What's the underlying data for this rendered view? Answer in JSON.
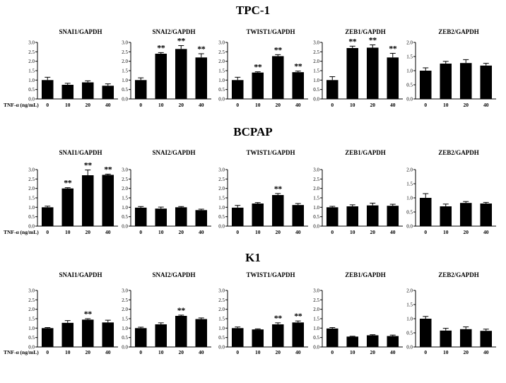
{
  "figure": {
    "xlabel": "TNF-α (ng/mL)",
    "categories": [
      "0",
      "10",
      "20",
      "40"
    ]
  },
  "chart_data": [
    {
      "row": "TPC-1",
      "panels": [
        {
          "type": "bar",
          "title": "SNAI1/GAPDH",
          "categories": [
            "0",
            "10",
            "20",
            "40"
          ],
          "values": [
            1.0,
            0.75,
            0.88,
            0.7
          ],
          "errors": [
            0.15,
            0.08,
            0.08,
            0.1
          ],
          "significance": [
            "",
            "",
            "",
            ""
          ],
          "ylim": [
            0,
            3.0
          ],
          "yticks": [
            "0.0",
            "0.5",
            "1.0",
            "1.5",
            "2.0",
            "2.5",
            "3.0"
          ]
        },
        {
          "type": "bar",
          "title": "SNAI2/GAPDH",
          "categories": [
            "0",
            "10",
            "20",
            "40"
          ],
          "values": [
            1.0,
            2.4,
            2.65,
            2.2
          ],
          "errors": [
            0.12,
            0.06,
            0.18,
            0.2
          ],
          "significance": [
            "",
            "**",
            "**",
            "**"
          ],
          "ylim": [
            0,
            3.0
          ],
          "yticks": [
            "0.0",
            "0.5",
            "1.0",
            "1.5",
            "2.0",
            "2.5",
            "3.0"
          ]
        },
        {
          "type": "bar",
          "title": "TWIST1/GAPDH",
          "categories": [
            "0",
            "10",
            "20",
            "40"
          ],
          "values": [
            1.0,
            1.4,
            2.27,
            1.42
          ],
          "errors": [
            0.15,
            0.04,
            0.08,
            0.06
          ],
          "significance": [
            "",
            "**",
            "**",
            "**"
          ],
          "ylim": [
            0,
            3.0
          ],
          "yticks": [
            "0.0",
            "0.5",
            "1.0",
            "1.5",
            "2.0",
            "2.5",
            "3.0"
          ]
        },
        {
          "type": "bar",
          "title": "ZEB1/GAPDH",
          "categories": [
            "0",
            "10",
            "20",
            "40"
          ],
          "values": [
            1.0,
            2.7,
            2.72,
            2.2
          ],
          "errors": [
            0.18,
            0.1,
            0.15,
            0.22
          ],
          "significance": [
            "",
            "**",
            "**",
            "**"
          ],
          "ylim": [
            0,
            3.0
          ],
          "yticks": [
            "0.0",
            "0.5",
            "1.0",
            "1.5",
            "2.0",
            "2.5",
            "3.0"
          ]
        },
        {
          "type": "bar",
          "title": "ZEB2/GAPDH",
          "categories": [
            "0",
            "10",
            "20",
            "40"
          ],
          "values": [
            1.0,
            1.25,
            1.27,
            1.18
          ],
          "errors": [
            0.1,
            0.08,
            0.12,
            0.08
          ],
          "significance": [
            "",
            "",
            "",
            ""
          ],
          "ylim": [
            0,
            2.0
          ],
          "yticks": [
            "0.0",
            "0.5",
            "1.0",
            "1.5",
            "2.0"
          ]
        }
      ]
    },
    {
      "row": "BCPAP",
      "panels": [
        {
          "type": "bar",
          "title": "SNAI1/GAPDH",
          "categories": [
            "0",
            "10",
            "20",
            "40"
          ],
          "values": [
            1.0,
            2.0,
            2.7,
            2.72
          ],
          "errors": [
            0.06,
            0.04,
            0.28,
            0.04
          ],
          "significance": [
            "",
            "**",
            "**",
            "**"
          ],
          "ylim": [
            0,
            3.0
          ],
          "yticks": [
            "0.0",
            "0.5",
            "1.0",
            "1.5",
            "2.0",
            "2.5",
            "3.0"
          ]
        },
        {
          "type": "bar",
          "title": "SNAI2/GAPDH",
          "categories": [
            "0",
            "10",
            "20",
            "40"
          ],
          "values": [
            0.98,
            0.93,
            1.0,
            0.85
          ],
          "errors": [
            0.06,
            0.08,
            0.04,
            0.05
          ],
          "significance": [
            "",
            "",
            "",
            ""
          ],
          "ylim": [
            0,
            3.0
          ],
          "yticks": [
            "0.0",
            "0.5",
            "1.0",
            "1.5",
            "2.0",
            "2.5",
            "3.0"
          ]
        },
        {
          "type": "bar",
          "title": "TWIST1/GAPDH",
          "categories": [
            "0",
            "10",
            "20",
            "40"
          ],
          "values": [
            0.98,
            1.2,
            1.65,
            1.12
          ],
          "errors": [
            0.12,
            0.05,
            0.08,
            0.08
          ],
          "significance": [
            "",
            "",
            "**",
            ""
          ],
          "ylim": [
            0,
            3.0
          ],
          "yticks": [
            "0.0",
            "0.5",
            "1.0",
            "1.5",
            "2.0",
            "2.5",
            "3.0"
          ]
        },
        {
          "type": "bar",
          "title": "ZEB1/GAPDH",
          "categories": [
            "0",
            "10",
            "20",
            "40"
          ],
          "values": [
            1.0,
            1.05,
            1.1,
            1.08
          ],
          "errors": [
            0.05,
            0.08,
            0.12,
            0.08
          ],
          "significance": [
            "",
            "",
            "",
            ""
          ],
          "ylim": [
            0,
            3.0
          ],
          "yticks": [
            "0.0",
            "0.5",
            "1.0",
            "1.5",
            "2.0",
            "2.5",
            "3.0"
          ]
        },
        {
          "type": "bar",
          "title": "ZEB2/GAPDH",
          "categories": [
            "0",
            "10",
            "20",
            "40"
          ],
          "values": [
            1.0,
            0.7,
            0.82,
            0.8
          ],
          "errors": [
            0.15,
            0.08,
            0.05,
            0.04
          ],
          "significance": [
            "",
            "",
            "",
            ""
          ],
          "ylim": [
            0,
            2.0
          ],
          "yticks": [
            "0.0",
            "0.5",
            "1.0",
            "1.5",
            "2.0"
          ]
        }
      ]
    },
    {
      "row": "K1",
      "panels": [
        {
          "type": "bar",
          "title": "SNAI1/GAPDH",
          "categories": [
            "0",
            "10",
            "20",
            "40"
          ],
          "values": [
            1.0,
            1.28,
            1.45,
            1.3
          ],
          "errors": [
            0.03,
            0.12,
            0.05,
            0.12
          ],
          "significance": [
            "",
            "",
            "**",
            ""
          ],
          "ylim": [
            0,
            3.0
          ],
          "yticks": [
            "0.0",
            "0.5",
            "1.0",
            "1.5",
            "2.0",
            "2.5",
            "3.0"
          ]
        },
        {
          "type": "bar",
          "title": "SNAI2/GAPDH",
          "categories": [
            "0",
            "10",
            "20",
            "40"
          ],
          "values": [
            1.0,
            1.2,
            1.65,
            1.48
          ],
          "errors": [
            0.05,
            0.08,
            0.04,
            0.06
          ],
          "significance": [
            "",
            "",
            "**",
            ""
          ],
          "ylim": [
            0,
            3.0
          ],
          "yticks": [
            "0.0",
            "0.5",
            "1.0",
            "1.5",
            "2.0",
            "2.5",
            "3.0"
          ]
        },
        {
          "type": "bar",
          "title": "TWIST1/GAPDH",
          "categories": [
            "0",
            "10",
            "20",
            "40"
          ],
          "values": [
            1.0,
            0.93,
            1.2,
            1.3
          ],
          "errors": [
            0.06,
            0.03,
            0.08,
            0.08
          ],
          "significance": [
            "",
            "",
            "**",
            "**"
          ],
          "ylim": [
            0,
            3.0
          ],
          "yticks": [
            "0.0",
            "0.5",
            "1.0",
            "1.5",
            "2.0",
            "2.5",
            "3.0"
          ]
        },
        {
          "type": "bar",
          "title": "ZEB1/GAPDH",
          "categories": [
            "0",
            "10",
            "20",
            "40"
          ],
          "values": [
            0.98,
            0.55,
            0.62,
            0.58
          ],
          "errors": [
            0.05,
            0.02,
            0.03,
            0.05
          ],
          "significance": [
            "",
            "",
            "",
            ""
          ],
          "ylim": [
            0,
            3.0
          ],
          "yticks": [
            "0.0",
            "0.5",
            "1.0",
            "1.5",
            "2.0",
            "2.5",
            "3.0"
          ]
        },
        {
          "type": "bar",
          "title": "ZEB2/GAPDH",
          "categories": [
            "0",
            "10",
            "20",
            "40"
          ],
          "values": [
            1.0,
            0.58,
            0.63,
            0.57
          ],
          "errors": [
            0.08,
            0.08,
            0.08,
            0.06
          ],
          "significance": [
            "",
            "",
            "",
            ""
          ],
          "ylim": [
            0,
            2.0
          ],
          "yticks": [
            "0.0",
            "0.5",
            "1.0",
            "1.5",
            "2.0"
          ]
        }
      ]
    }
  ]
}
